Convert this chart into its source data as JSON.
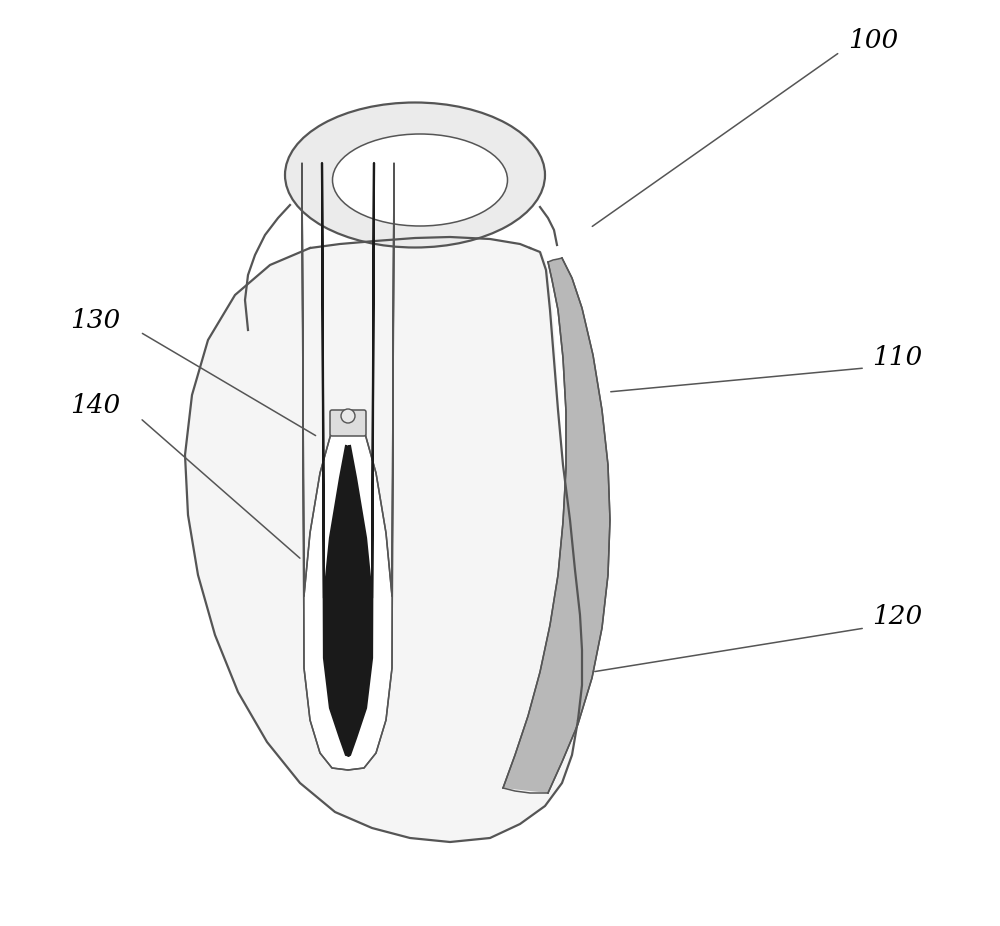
{
  "background_color": "#ffffff",
  "line_color": "#555555",
  "label_color": "#000000",
  "body_fill": "#f5f5f5",
  "ring_fill": "#ebebeb",
  "flap_fill": "#c8c8c8",
  "zipper_dark": "#1a1a1a",
  "zipper_mid": "#888888",
  "zipper_light": "#cccccc"
}
